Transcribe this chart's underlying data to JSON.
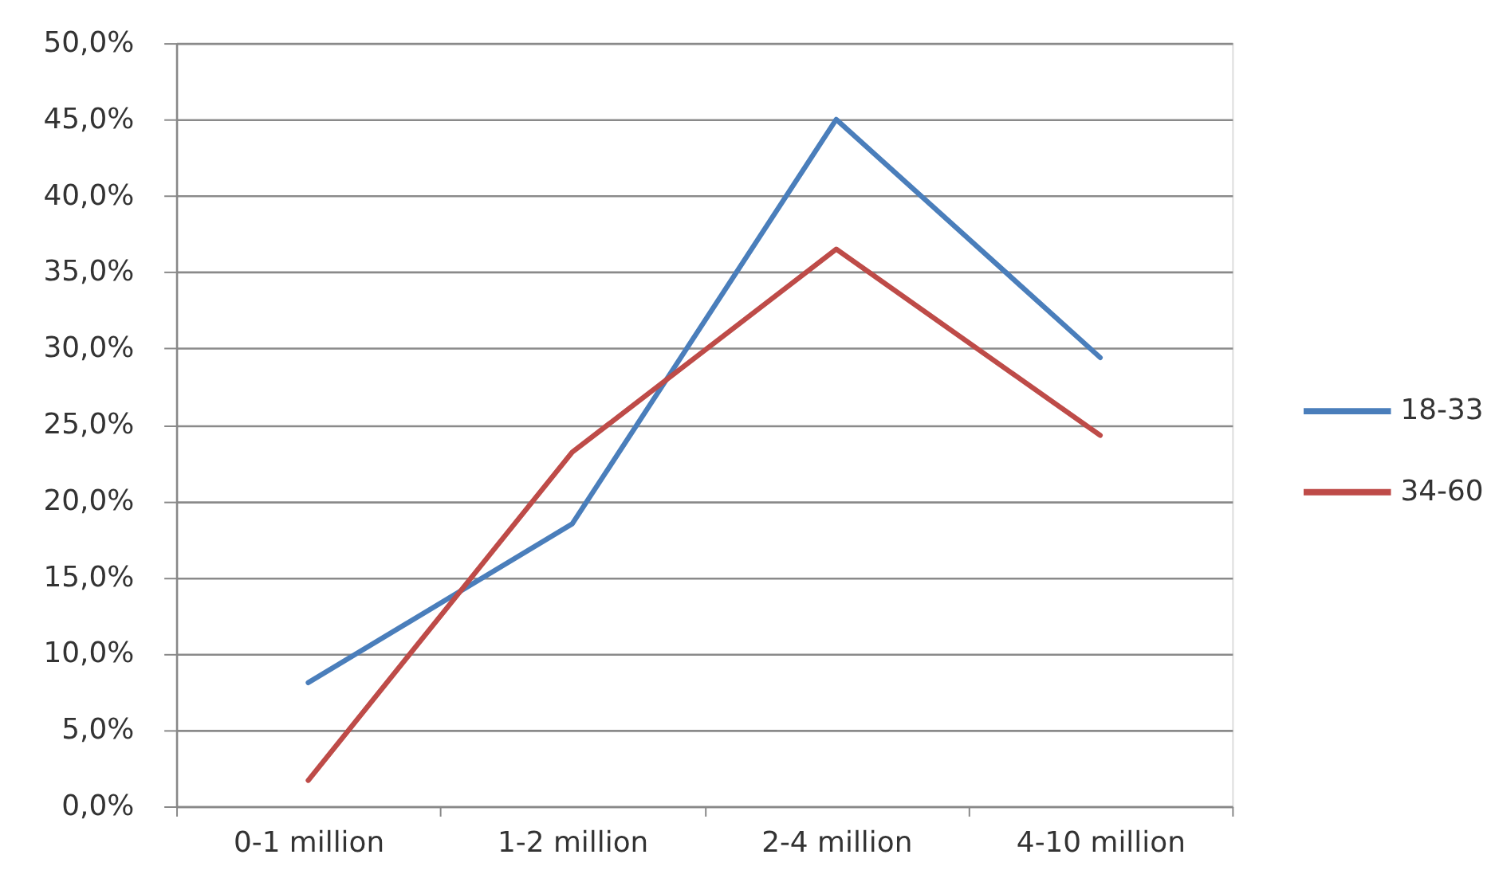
{
  "chart_data": {
    "type": "line",
    "categories": [
      "0-1 million",
      "1-2 million",
      "2-4 million",
      "4-10 million"
    ],
    "series": [
      {
        "name": "18-33",
        "color": "#4a7ebb",
        "values": [
          8.1,
          18.5,
          45.0,
          29.4
        ]
      },
      {
        "name": "34-60",
        "color": "#be4b48",
        "values": [
          1.7,
          23.2,
          36.5,
          24.3
        ]
      }
    ],
    "ylim": [
      0,
      50
    ],
    "yticks": [
      {
        "value": 0,
        "label": "0,0%"
      },
      {
        "value": 5,
        "label": "5,0%"
      },
      {
        "value": 10,
        "label": "10,0%"
      },
      {
        "value": 15,
        "label": "15,0%"
      },
      {
        "value": 20,
        "label": "20,0%"
      },
      {
        "value": 25,
        "label": "25,0%"
      },
      {
        "value": 30,
        "label": "30,0%"
      },
      {
        "value": 35,
        "label": "35,0%"
      },
      {
        "value": 40,
        "label": "40,0%"
      },
      {
        "value": 45,
        "label": "45,0%"
      },
      {
        "value": 50,
        "label": "50,0%"
      }
    ],
    "grid": "y",
    "legend": "right",
    "marker": "none",
    "line_style": "solid"
  }
}
